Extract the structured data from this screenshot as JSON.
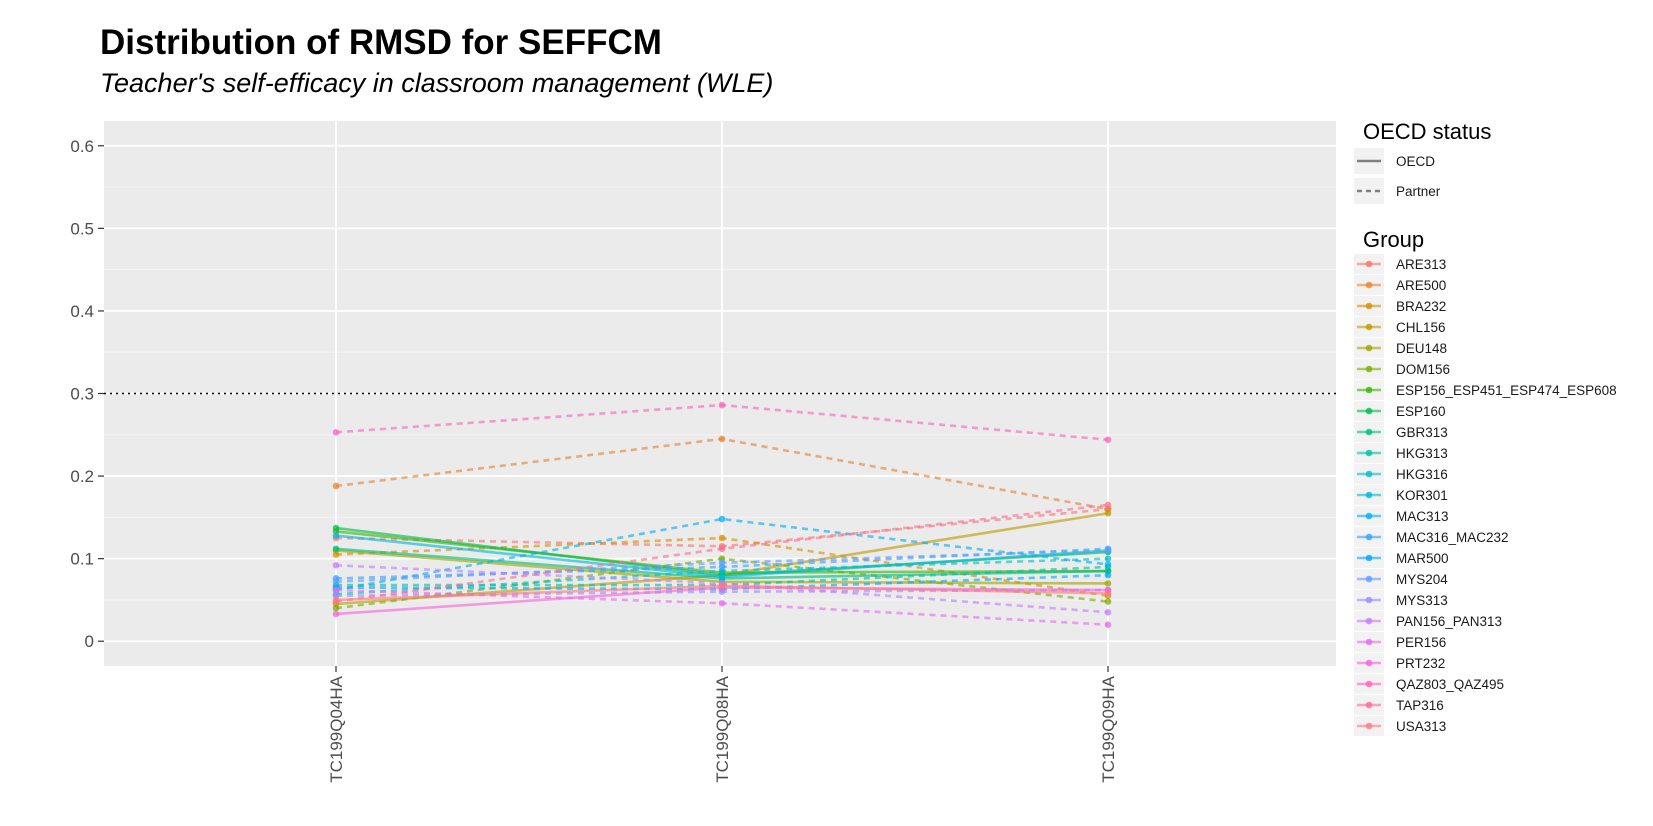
{
  "chart_data": {
    "type": "line",
    "title": "Distribution of RMSD for SEFFCM",
    "subtitle": "Teacher's self-efficacy in classroom management (WLE)",
    "xlabel": "",
    "ylabel": "",
    "categories": [
      "TC199Q04HA",
      "TC199Q08HA",
      "TC199Q09HA"
    ],
    "ylim": [
      -0.03,
      0.63
    ],
    "y_ticks": [
      0,
      0.1,
      0.2,
      0.3,
      0.4,
      0.5,
      0.6
    ],
    "y_tick_labels": [
      "0",
      "0.1",
      "0.2",
      "0.3",
      "0.4",
      "0.5",
      "0.6"
    ],
    "reference_line": 0.3,
    "grid": true,
    "legend_position": "right",
    "linetype_legend": {
      "title": "OECD status",
      "items": [
        {
          "label": "OECD",
          "dash": "solid"
        },
        {
          "label": "Partner",
          "dash": "dashed"
        }
      ]
    },
    "group_legend_title": "Group",
    "series": [
      {
        "name": "ARE313",
        "color": "#F8766D",
        "status": "Partner",
        "values": [
          0.125,
          0.115,
          0.16
        ]
      },
      {
        "name": "ARE500",
        "color": "#EA8331",
        "status": "Partner",
        "values": [
          0.188,
          0.245,
          0.16
        ]
      },
      {
        "name": "BRA232",
        "color": "#D89000",
        "status": "Partner",
        "values": [
          0.105,
          0.125,
          0.055
        ]
      },
      {
        "name": "CHL156",
        "color": "#C09B00",
        "status": "OECD",
        "values": [
          0.045,
          0.08,
          0.155
        ]
      },
      {
        "name": "DEU148",
        "color": "#A3A500",
        "status": "OECD",
        "values": [
          0.11,
          0.072,
          0.07
        ]
      },
      {
        "name": "DOM156",
        "color": "#7CAE00",
        "status": "Partner",
        "values": [
          0.04,
          0.1,
          0.048
        ]
      },
      {
        "name": "ESP156_ESP451_ESP474_ESP608",
        "color": "#39B600",
        "status": "OECD",
        "values": [
          0.133,
          0.083,
          0.085
        ]
      },
      {
        "name": "ESP160",
        "color": "#00BB4E",
        "status": "OECD",
        "values": [
          0.137,
          0.08,
          0.108
        ]
      },
      {
        "name": "GBR313",
        "color": "#00BF7D",
        "status": "OECD",
        "values": [
          0.112,
          0.076,
          0.085
        ]
      },
      {
        "name": "HKG313",
        "color": "#00C1A3",
        "status": "Partner",
        "values": [
          0.068,
          0.068,
          0.09
        ]
      },
      {
        "name": "HKG316",
        "color": "#00BFC4",
        "status": "Partner",
        "values": [
          0.057,
          0.085,
          0.1
        ]
      },
      {
        "name": "KOR301",
        "color": "#00BAE0",
        "status": "OECD",
        "values": [
          0.128,
          0.078,
          0.11
        ]
      },
      {
        "name": "MAC313",
        "color": "#00B0F6",
        "status": "Partner",
        "values": [
          0.062,
          0.148,
          0.093
        ]
      },
      {
        "name": "MAC316_MAC232",
        "color": "#35A2FF",
        "status": "Partner",
        "values": [
          0.076,
          0.09,
          0.112
        ]
      },
      {
        "name": "MAR500",
        "color": "#00A9FF",
        "status": "Partner",
        "values": [
          0.065,
          0.063,
          0.08
        ]
      },
      {
        "name": "MYS204",
        "color": "#619CFF",
        "status": "Partner",
        "values": [
          0.072,
          0.095,
          0.11
        ]
      },
      {
        "name": "MYS313",
        "color": "#9590FF",
        "status": "Partner",
        "values": [
          0.055,
          0.06,
          0.062
        ]
      },
      {
        "name": "PAN156_PAN313",
        "color": "#C77CFF",
        "status": "Partner",
        "values": [
          0.092,
          0.07,
          0.035
        ]
      },
      {
        "name": "PER156",
        "color": "#E76BF3",
        "status": "Partner",
        "values": [
          0.062,
          0.046,
          0.02
        ]
      },
      {
        "name": "PRT232",
        "color": "#FA62DB",
        "status": "OECD",
        "values": [
          0.033,
          0.065,
          0.062
        ]
      },
      {
        "name": "QAZ803_QAZ495",
        "color": "#FF62BC",
        "status": "Partner",
        "values": [
          0.253,
          0.286,
          0.244
        ]
      },
      {
        "name": "TAP316",
        "color": "#FF6C91",
        "status": "Partner",
        "values": [
          0.048,
          0.112,
          0.165
        ]
      },
      {
        "name": "USA313",
        "color": "#FF7A82",
        "status": "OECD",
        "values": [
          0.05,
          0.067,
          0.058
        ]
      }
    ]
  }
}
